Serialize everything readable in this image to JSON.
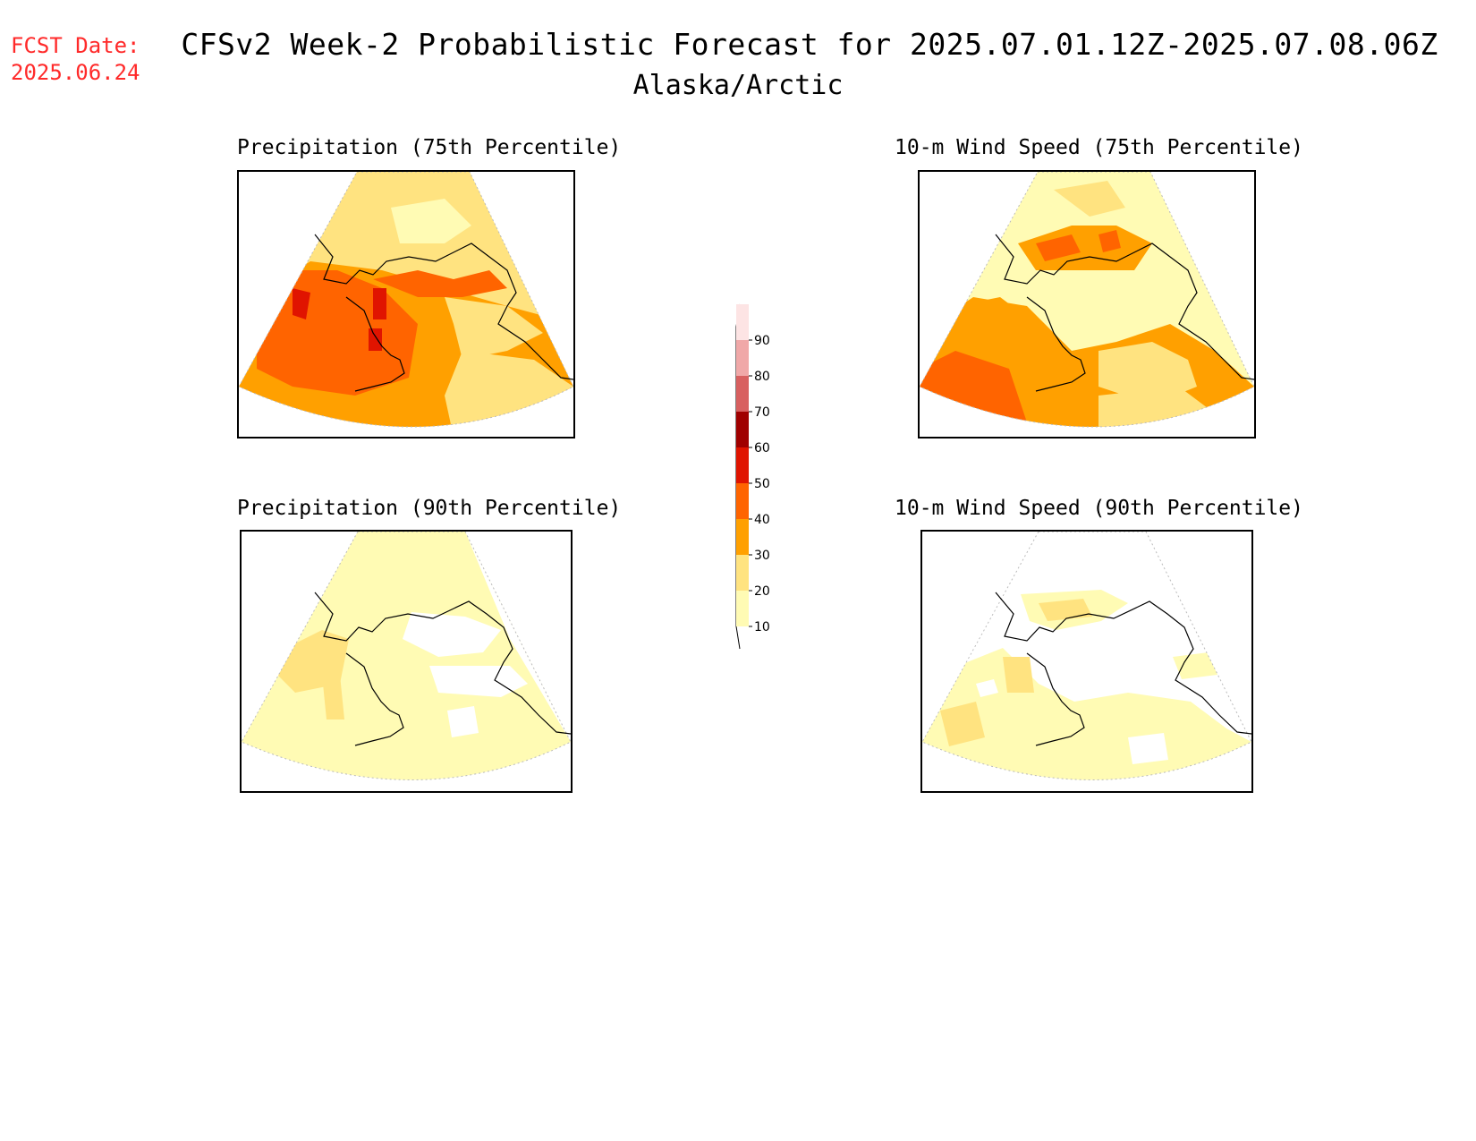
{
  "header": {
    "fcst_label": "FCST Date:",
    "fcst_date": "2025.06.24",
    "title": "CFSv2 Week-2 Probabilistic Forecast for 2025.07.01.12Z-2025.07.08.06Z",
    "subtitle": "Alaska/Arctic"
  },
  "panels": [
    {
      "title": "Precipitation (75th Percentile)"
    },
    {
      "title": "10-m Wind Speed (75th Percentile)"
    },
    {
      "title": "Precipitation (90th Percentile)"
    },
    {
      "title": "10-m Wind Speed (90th Percentile)"
    }
  ],
  "legend": {
    "labels": [
      "10",
      "20",
      "30",
      "40",
      "50",
      "60",
      "70",
      "80",
      "90"
    ],
    "colors": [
      "#fffbb4",
      "#ffe380",
      "#ffa000",
      "#ff6400",
      "#e01400",
      "#a00000",
      "#d86060",
      "#f0a8a8",
      "#fde4e4"
    ]
  }
}
